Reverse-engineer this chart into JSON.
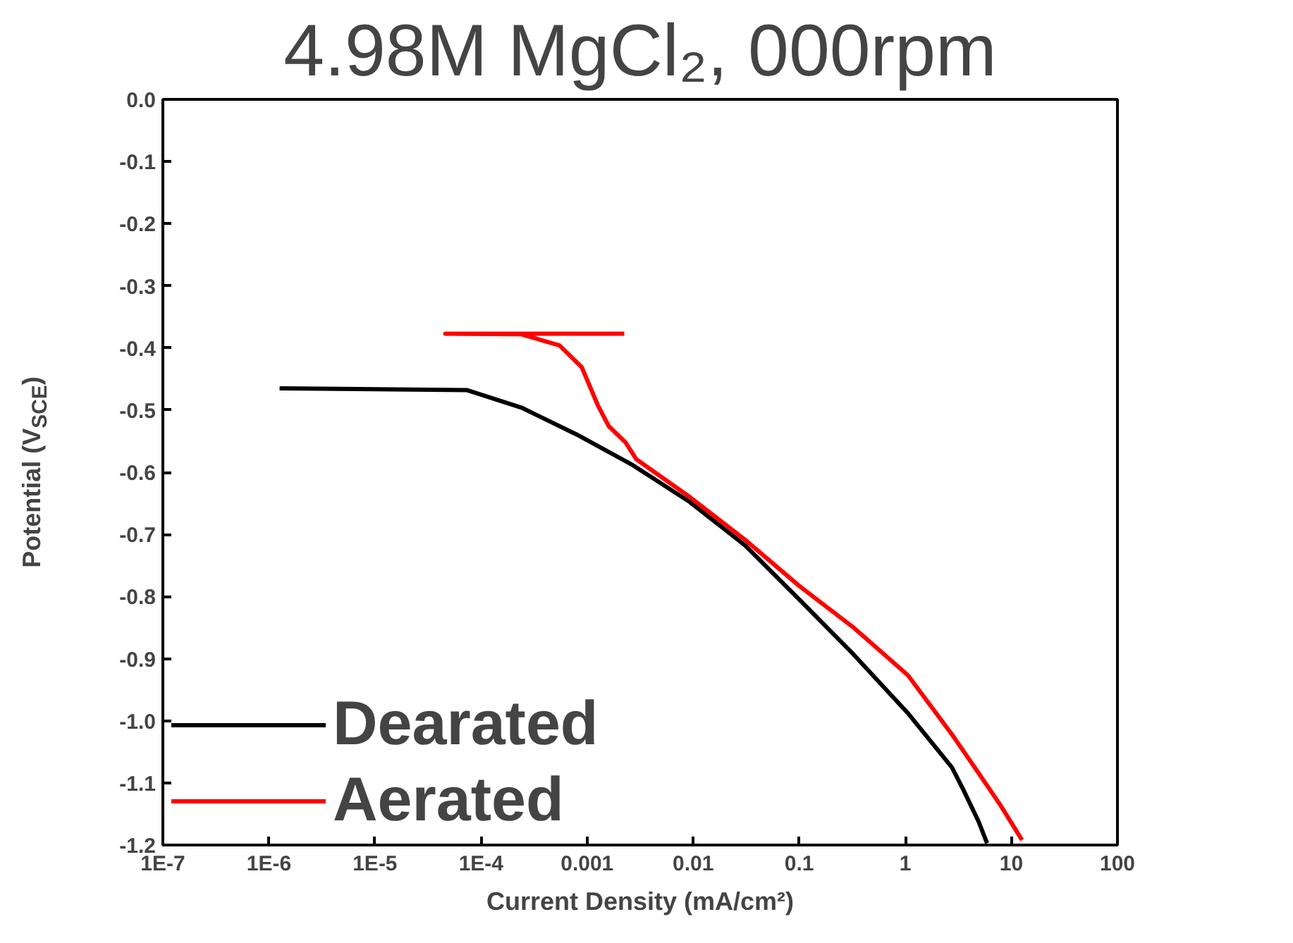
{
  "chart_data": {
    "type": "line",
    "title": "4.98M MgCl₂, 000rpm",
    "xlabel": "Current Density (mA/cm²)",
    "ylabel": "Potential (V$_{SCE}$)",
    "log": "x",
    "legend": "bottom left",
    "grid": false,
    "x": [
      1.26e-06,
      7.4e-05,
      0.00024,
      0.00079,
      0.0026,
      0.0093,
      0.031,
      0.1,
      0.32,
      1.06,
      2.75,
      3.5,
      4.9,
      5.9
    ],
    "series": [
      {
        "name": "Dearated",
        "color": "#000000",
        "values": [
          -0.465,
          -0.468,
          -0.496,
          -0.539,
          -0.587,
          -0.648,
          -0.718,
          -0.805,
          -0.892,
          -0.988,
          -1.075,
          -1.11,
          -1.162,
          -1.197
        ]
      },
      {
        "name": "Aerated",
        "color": "#ff0000",
        "x": [
          0.00224,
          4.6e-05,
          0.00024,
          0.00055,
          0.00089,
          0.00126,
          0.0016,
          0.0023,
          0.0029,
          0.0093,
          0.031,
          0.1,
          0.32,
          1.06,
          2.75,
          4.9,
          7.9,
          12.6
        ],
        "values": [
          -0.377,
          -0.377,
          -0.378,
          -0.396,
          -0.431,
          -0.492,
          -0.526,
          -0.552,
          -0.579,
          -0.64,
          -0.709,
          -0.783,
          -0.849,
          -0.927,
          -1.022,
          -1.084,
          -1.136,
          -1.192
        ]
      }
    ],
    "xlim": [
      1e-07,
      100
    ],
    "xticks": [
      {
        "value": 1e-07,
        "label": "1E-7"
      },
      {
        "value": 1e-06,
        "label": "1E-6"
      },
      {
        "value": 1e-05,
        "label": "1E-5"
      },
      {
        "value": 0.0001,
        "label": "1E-4"
      },
      {
        "value": 0.001,
        "label": "0.001"
      },
      {
        "value": 0.01,
        "label": "0.01"
      },
      {
        "value": 0.1,
        "label": "0.1"
      },
      {
        "value": 1,
        "label": "1"
      },
      {
        "value": 10,
        "label": "10"
      },
      {
        "value": 100,
        "label": "100"
      }
    ],
    "ylim": [
      -1.2,
      0.0
    ],
    "yticks": [
      {
        "value": 0.0,
        "label": "0.0"
      },
      {
        "value": -0.1,
        "label": "-0.1"
      },
      {
        "value": -0.2,
        "label": "-0.2"
      },
      {
        "value": -0.3,
        "label": "-0.3"
      },
      {
        "value": -0.4,
        "label": "-0.4"
      },
      {
        "value": -0.5,
        "label": "-0.5"
      },
      {
        "value": -0.6,
        "label": "-0.6"
      },
      {
        "value": -0.7,
        "label": "-0.7"
      },
      {
        "value": -0.8,
        "label": "-0.8"
      },
      {
        "value": -0.9,
        "label": "-0.9"
      },
      {
        "value": -1.0,
        "label": "-1.0"
      },
      {
        "value": -1.1,
        "label": "-1.1"
      },
      {
        "value": -1.2,
        "label": "-1.2"
      }
    ]
  }
}
